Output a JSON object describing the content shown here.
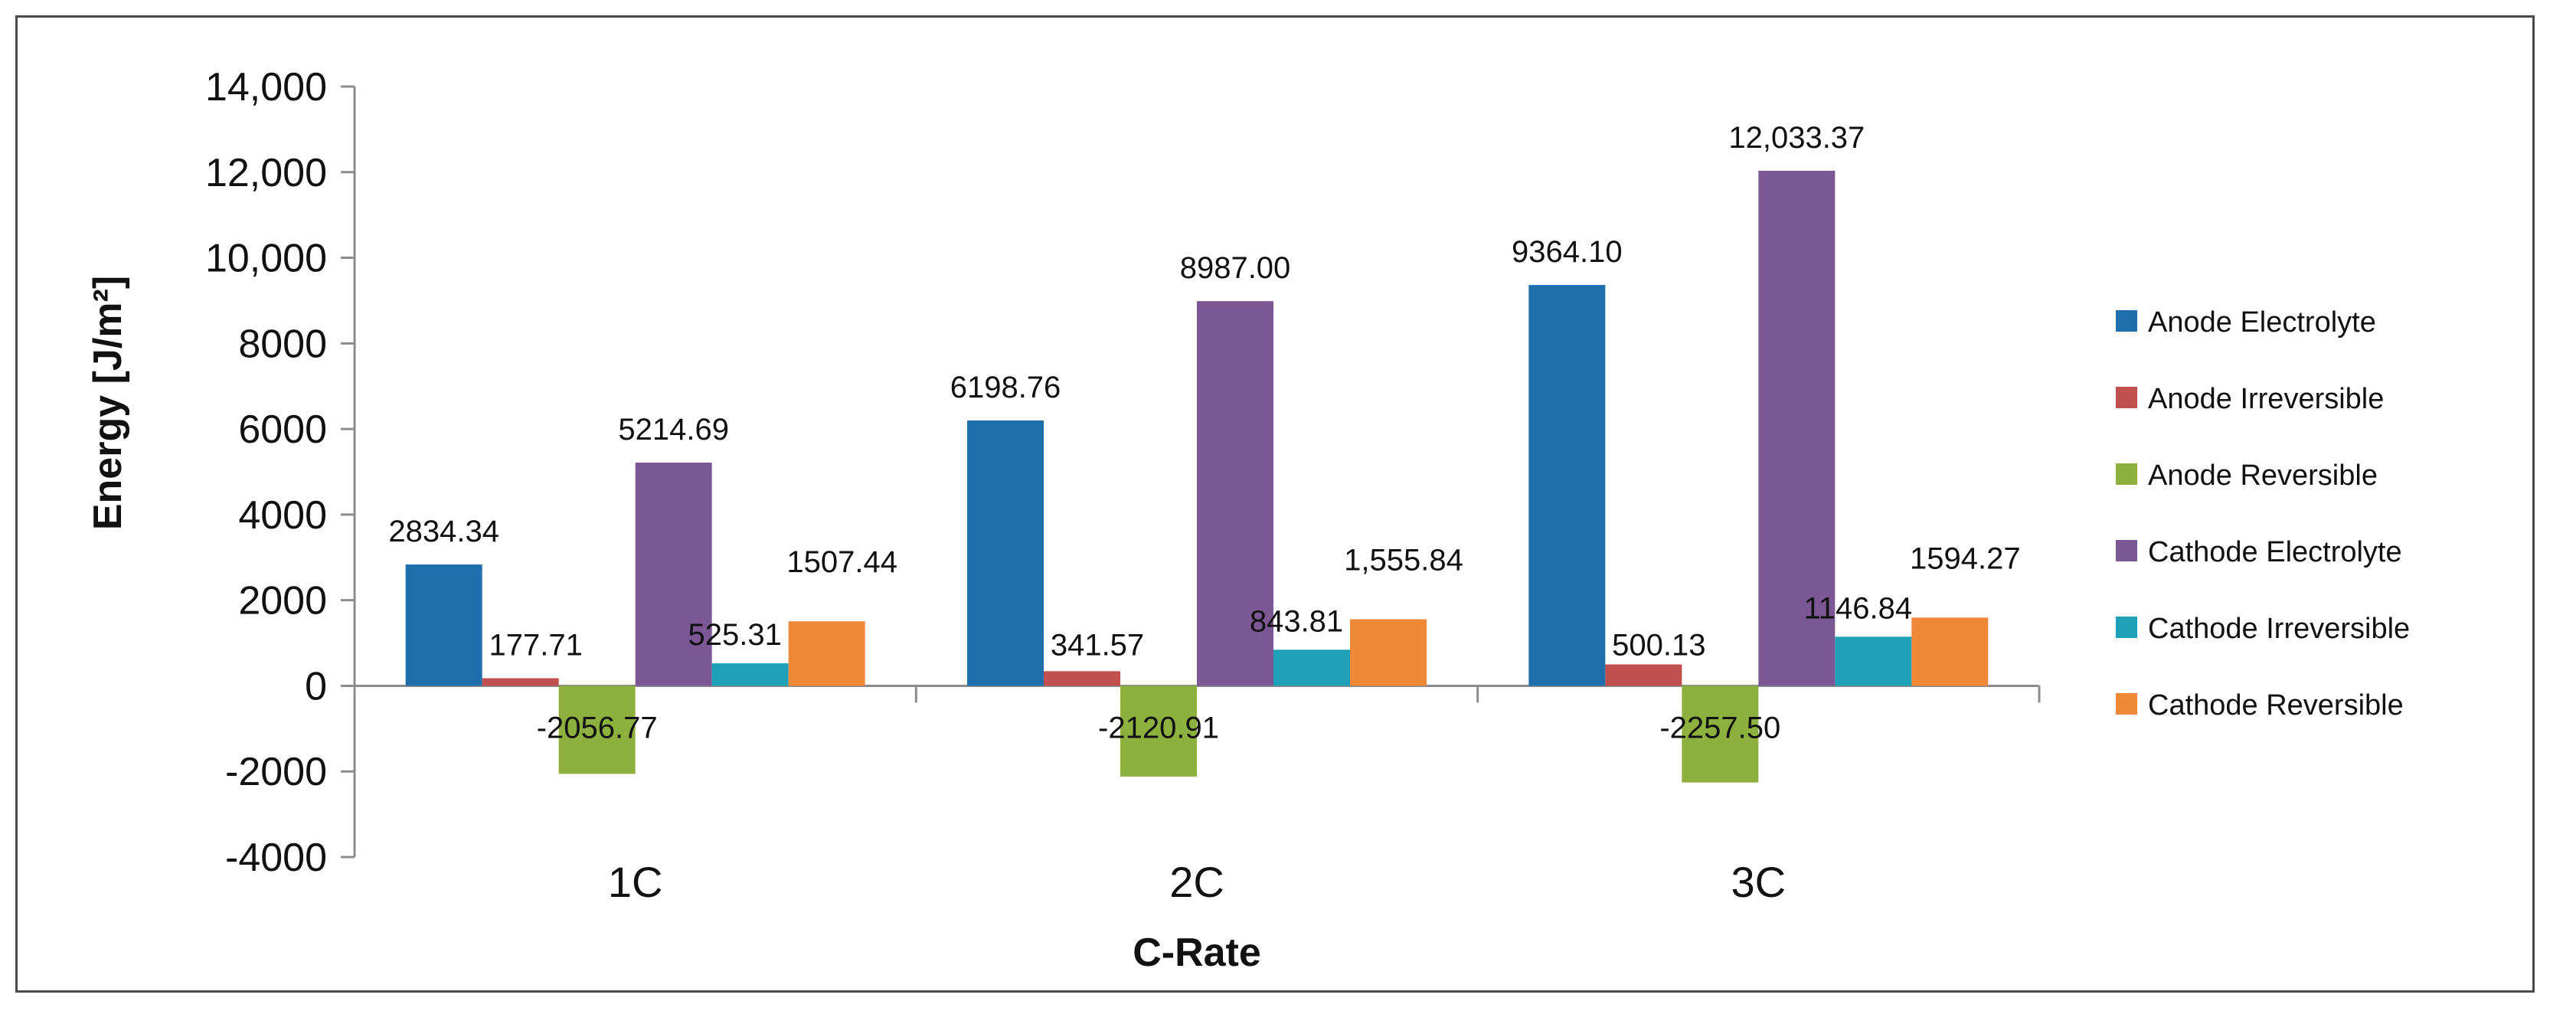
{
  "chart_data": {
    "type": "bar",
    "title": "",
    "xlabel": "C-Rate",
    "ylabel": "Energy [J/m²]",
    "categories": [
      "1C",
      "2C",
      "3C"
    ],
    "ylim": [
      -4000,
      14000
    ],
    "yticks": [
      -4000,
      -2000,
      0,
      2000,
      4000,
      6000,
      8000,
      10000,
      12000,
      14000
    ],
    "ytick_labels": [
      "-4000",
      "-2000",
      "0",
      "2000",
      "4000",
      "6000",
      "8000",
      "10,000",
      "12,000",
      "14,000"
    ],
    "legend_position": "right",
    "grid": false,
    "series": [
      {
        "name": "Anode Electrolyte",
        "color": "#1f6fad",
        "values": [
          2834.34,
          6198.76,
          9364.1
        ],
        "labels": [
          "2834.34",
          "6198.76",
          "9364.10"
        ]
      },
      {
        "name": "Anode Irreversible",
        "color": "#c0504d",
        "values": [
          177.71,
          341.57,
          500.13
        ],
        "labels": [
          "177.71",
          "341.57",
          "500.13"
        ]
      },
      {
        "name": "Anode Reversible",
        "color": "#8db03f",
        "values": [
          -2056.77,
          -2120.91,
          -2257.5
        ],
        "labels": [
          "-2056.77",
          "-2120.91",
          "-2257.50"
        ]
      },
      {
        "name": "Cathode Electrolyte",
        "color": "#7b5794",
        "values": [
          5214.69,
          8987.0,
          12033.37
        ],
        "labels": [
          "5214.69",
          "8987.00",
          "12,033.37"
        ]
      },
      {
        "name": "Cathode Irreversible",
        "color": "#1ea0b8",
        "values": [
          525.31,
          843.81,
          1146.84
        ],
        "labels": [
          "525.31",
          "843.81",
          "1146.84"
        ]
      },
      {
        "name": "Cathode Reversible",
        "color": "#f0883a",
        "values": [
          1507.44,
          1555.84,
          1594.27
        ],
        "labels": [
          "1507.44",
          "1,555.84",
          "1594.27"
        ]
      }
    ]
  }
}
